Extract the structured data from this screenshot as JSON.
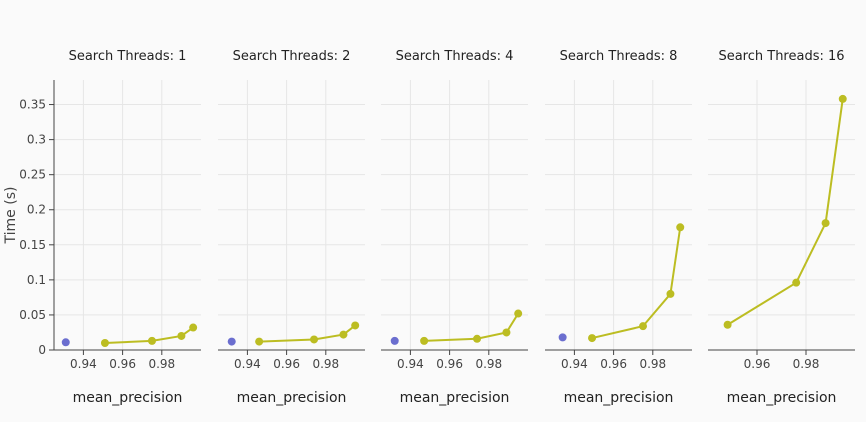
{
  "chart_data": {
    "type": "line",
    "ylabel": "Time (s)",
    "xlabel": "mean_precision",
    "ylim": [
      0,
      0.385
    ],
    "yticks": [
      0,
      0.05,
      0.1,
      0.15,
      0.2,
      0.25,
      0.3,
      0.35
    ],
    "ytick_labels": [
      "0",
      "0.05",
      "0.1",
      "0.15",
      "0.2",
      "0.25",
      "0.3",
      "0.35"
    ],
    "grid": true,
    "colors": {
      "series_a": "#bcbd22",
      "series_b": "#6b6ecf",
      "grid": "#e6e6e6",
      "axis": "#444444"
    },
    "panels": [
      {
        "title": "Search Threads: 1",
        "xlim": [
          0.925,
          1.0
        ],
        "xticks": [
          0.94,
          0.96,
          0.98
        ],
        "xtick_labels": [
          "0.94",
          "0.96",
          "0.98"
        ],
        "series": [
          {
            "color": "#6b6ecf",
            "mode": "markers",
            "x": [
              0.931
            ],
            "y": [
              0.011
            ]
          },
          {
            "color": "#bcbd22",
            "mode": "lines+markers",
            "x": [
              0.951,
              0.975,
              0.99,
              0.996
            ],
            "y": [
              0.01,
              0.013,
              0.02,
              0.032
            ]
          }
        ]
      },
      {
        "title": "Search Threads: 2",
        "xlim": [
          0.925,
          1.0
        ],
        "xticks": [
          0.94,
          0.96,
          0.98
        ],
        "xtick_labels": [
          "0.94",
          "0.96",
          "0.98"
        ],
        "series": [
          {
            "color": "#6b6ecf",
            "mode": "markers",
            "x": [
              0.932
            ],
            "y": [
              0.012
            ]
          },
          {
            "color": "#bcbd22",
            "mode": "lines+markers",
            "x": [
              0.946,
              0.974,
              0.989,
              0.995
            ],
            "y": [
              0.012,
              0.015,
              0.022,
              0.035
            ]
          }
        ]
      },
      {
        "title": "Search Threads: 4",
        "xlim": [
          0.925,
          1.0
        ],
        "xticks": [
          0.94,
          0.96,
          0.98
        ],
        "xtick_labels": [
          "0.94",
          "0.96",
          "0.98"
        ],
        "series": [
          {
            "color": "#6b6ecf",
            "mode": "markers",
            "x": [
              0.932
            ],
            "y": [
              0.013
            ]
          },
          {
            "color": "#bcbd22",
            "mode": "lines+markers",
            "x": [
              0.947,
              0.974,
              0.989,
              0.995
            ],
            "y": [
              0.013,
              0.016,
              0.025,
              0.052
            ]
          }
        ]
      },
      {
        "title": "Search Threads: 8",
        "xlim": [
          0.925,
          1.0
        ],
        "xticks": [
          0.94,
          0.96,
          0.98
        ],
        "xtick_labels": [
          "0.94",
          "0.96",
          "0.98"
        ],
        "series": [
          {
            "color": "#6b6ecf",
            "mode": "markers",
            "x": [
              0.934
            ],
            "y": [
              0.018
            ]
          },
          {
            "color": "#bcbd22",
            "mode": "lines+markers",
            "x": [
              0.949,
              0.975,
              0.989,
              0.994
            ],
            "y": [
              0.017,
              0.034,
              0.08,
              0.175
            ]
          }
        ]
      },
      {
        "title": "Search Threads: 16",
        "xlim": [
          0.94,
          1.0
        ],
        "xticks": [
          0.96,
          0.98
        ],
        "xtick_labels": [
          "0.96",
          "0.98"
        ],
        "series": [
          {
            "color": "#bcbd22",
            "mode": "lines+markers",
            "x": [
              0.948,
              0.976,
              0.988,
              0.995
            ],
            "y": [
              0.036,
              0.096,
              0.181,
              0.358
            ]
          }
        ]
      }
    ]
  }
}
